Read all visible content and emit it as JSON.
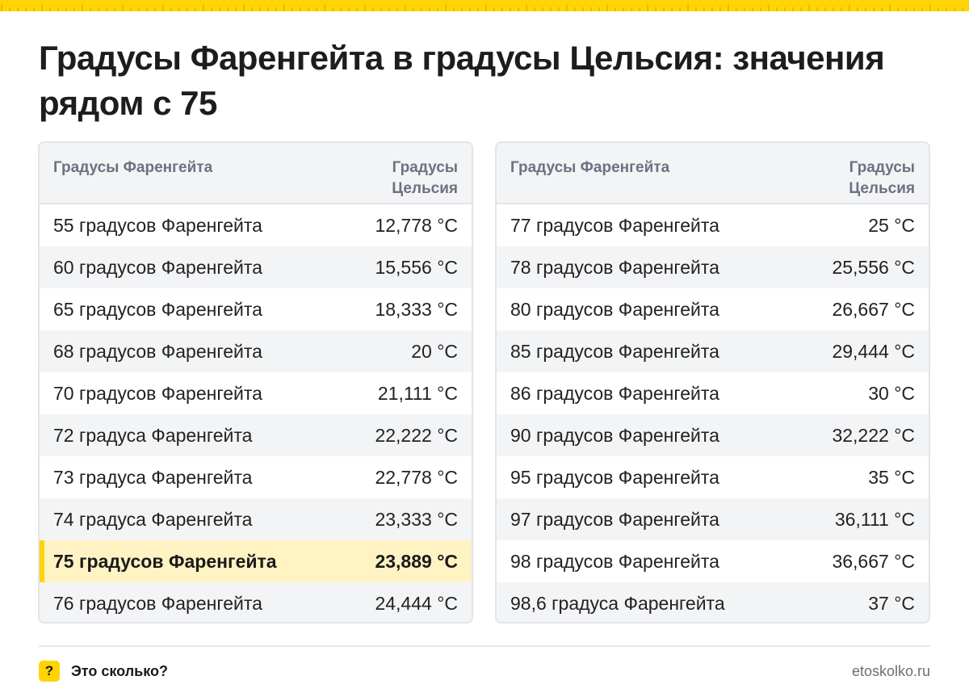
{
  "title": "Градусы Фаренгейта в градусы Цельсия: значения рядом с 75",
  "colors": {
    "accent": "#ffd400",
    "highlight_row": "#fff3c4",
    "stripe": "#f3f4f6"
  },
  "tables": [
    {
      "header": {
        "fahrenheit": "Градусы Фаренгейта",
        "celsius": "Градусы Цельсия"
      },
      "rows": [
        {
          "f": "55 градусов Фаренгейта",
          "c": "12,778 °C"
        },
        {
          "f": "60 градусов Фаренгейта",
          "c": "15,556 °C"
        },
        {
          "f": "65 градусов Фаренгейта",
          "c": "18,333 °C"
        },
        {
          "f": "68 градусов Фаренгейта",
          "c": "20 °C"
        },
        {
          "f": "70 градусов Фаренгейта",
          "c": "21,111 °C"
        },
        {
          "f": "72 градуса Фаренгейта",
          "c": "22,222 °C"
        },
        {
          "f": "73 градуса Фаренгейта",
          "c": "22,778 °C"
        },
        {
          "f": "74 градуса Фаренгейта",
          "c": "23,333 °C"
        },
        {
          "f": "75 градусов Фаренгейта",
          "c": "23,889 °C",
          "highlight": true
        },
        {
          "f": "76 градусов Фаренгейта",
          "c": "24,444 °C"
        }
      ]
    },
    {
      "header": {
        "fahrenheit": "Градусы Фаренгейта",
        "celsius": "Градусы Цельсия"
      },
      "rows": [
        {
          "f": "77 градусов Фаренгейта",
          "c": "25 °C"
        },
        {
          "f": "78 градусов Фаренгейта",
          "c": "25,556 °C"
        },
        {
          "f": "80 градусов Фаренгейта",
          "c": "26,667 °C"
        },
        {
          "f": "85 градусов Фаренгейта",
          "c": "29,444 °C"
        },
        {
          "f": "86 градусов Фаренгейта",
          "c": "30 °C"
        },
        {
          "f": "90 градусов Фаренгейта",
          "c": "32,222 °C"
        },
        {
          "f": "95 градусов Фаренгейта",
          "c": "35 °C"
        },
        {
          "f": "97 градусов Фаренгейта",
          "c": "36,111 °C"
        },
        {
          "f": "98 градусов Фаренгейта",
          "c": "36,667 °C"
        },
        {
          "f": "98,6 градуса Фаренгейта",
          "c": "37 °C"
        }
      ]
    }
  ],
  "footer": {
    "badge": "?",
    "brand": "Это сколько?",
    "site": "etoskolko.ru"
  }
}
